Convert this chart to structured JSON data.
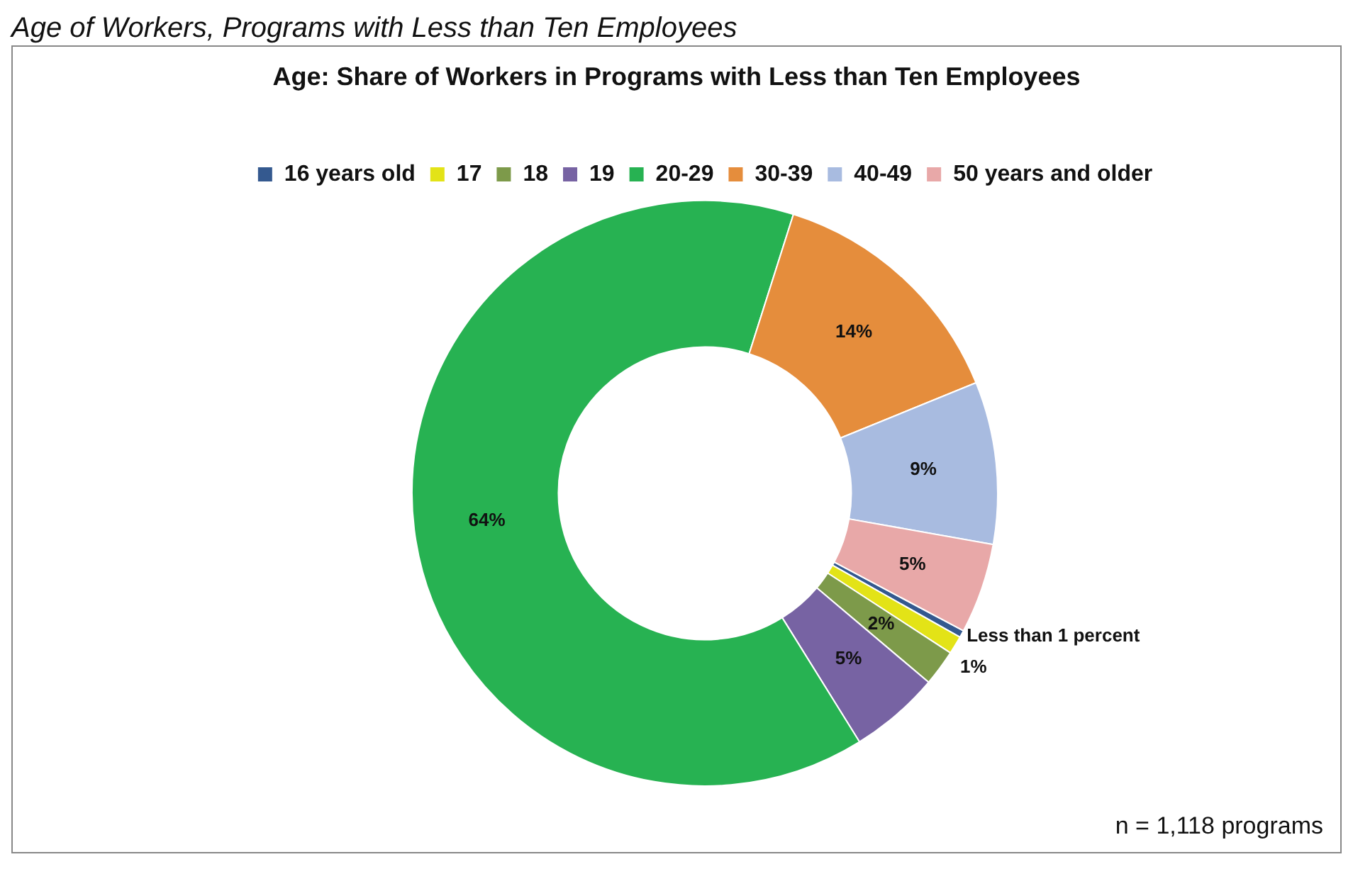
{
  "chart_data": {
    "type": "donut",
    "title": "Age:  Share of Workers in Programs with Less than Ten Employees",
    "categories": [
      "16 years old",
      "17",
      "18",
      "19",
      "20-29",
      "30-39",
      "40-49",
      "50 years and older"
    ],
    "values": [
      0.4,
      1,
      2,
      5,
      64,
      14,
      9,
      5
    ],
    "value_labels": [
      "Less than 1 percent",
      "1%",
      "2%",
      "5%",
      "64%",
      "14%",
      "9%",
      "5%"
    ],
    "colors": [
      "#34598f",
      "#e3e317",
      "#7d9a4a",
      "#7763a3",
      "#27b252",
      "#e58d3c",
      "#a8bbe0",
      "#e8a8a8"
    ],
    "legend": "top",
    "annotations": [
      "Age of Workers, Programs with Less than Ten Employees",
      "n = 1,118 programs"
    ]
  }
}
